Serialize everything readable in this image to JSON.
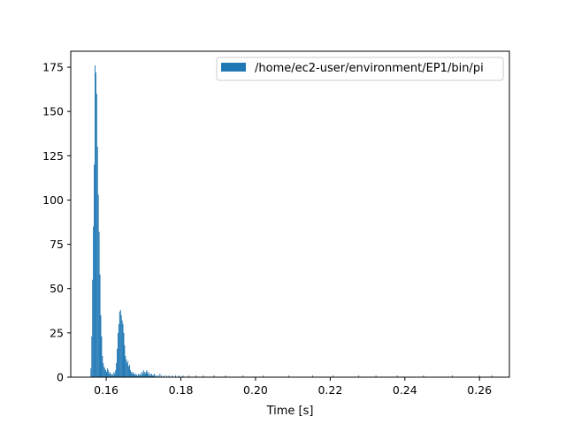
{
  "chart_data": {
    "type": "histogram",
    "xlabel": "Time [s]",
    "ylabel": "",
    "title": "",
    "xlim": [
      0.1505,
      0.268
    ],
    "ylim": [
      0,
      184
    ],
    "xticks": [
      0.16,
      0.18,
      0.2,
      0.22,
      0.24,
      0.26
    ],
    "xtick_labels": [
      "0.16",
      "0.18",
      "0.20",
      "0.22",
      "0.24",
      "0.26"
    ],
    "yticks": [
      0,
      25,
      50,
      75,
      100,
      125,
      150,
      175
    ],
    "ytick_labels": [
      "0",
      "25",
      "50",
      "75",
      "100",
      "125",
      "150",
      "175"
    ],
    "grid": false,
    "legend": {
      "placement": "top-right"
    },
    "colors": {
      "bar": "#1f77b4"
    },
    "series": [
      {
        "name": "/home/ec2-user/environment/EP1/bin/pi",
        "bin_width": 0.00022,
        "bins": [
          [
            0.1558,
            5
          ],
          [
            0.15602,
            23
          ],
          [
            0.15624,
            55
          ],
          [
            0.15646,
            85
          ],
          [
            0.15668,
            120
          ],
          [
            0.1569,
            176
          ],
          [
            0.15712,
            172
          ],
          [
            0.15734,
            160
          ],
          [
            0.15756,
            130
          ],
          [
            0.15778,
            103
          ],
          [
            0.158,
            82
          ],
          [
            0.15822,
            58
          ],
          [
            0.15844,
            35
          ],
          [
            0.15866,
            23
          ],
          [
            0.15888,
            12
          ],
          [
            0.1591,
            8
          ],
          [
            0.15932,
            6
          ],
          [
            0.15954,
            5
          ],
          [
            0.15976,
            4
          ],
          [
            0.15998,
            3
          ],
          [
            0.1602,
            5
          ],
          [
            0.16042,
            4
          ],
          [
            0.16064,
            2
          ],
          [
            0.16086,
            3
          ],
          [
            0.16108,
            2
          ],
          [
            0.1613,
            1
          ],
          [
            0.16152,
            2
          ],
          [
            0.16174,
            1
          ],
          [
            0.16196,
            3
          ],
          [
            0.16218,
            2
          ],
          [
            0.1624,
            4
          ],
          [
            0.16262,
            8
          ],
          [
            0.16284,
            16
          ],
          [
            0.16306,
            25
          ],
          [
            0.16328,
            30
          ],
          [
            0.1635,
            37
          ],
          [
            0.16372,
            38
          ],
          [
            0.16394,
            35
          ],
          [
            0.16416,
            32
          ],
          [
            0.16438,
            30
          ],
          [
            0.1646,
            25
          ],
          [
            0.16482,
            18
          ],
          [
            0.16504,
            12
          ],
          [
            0.16526,
            10
          ],
          [
            0.16548,
            8
          ],
          [
            0.1657,
            9
          ],
          [
            0.16592,
            6
          ],
          [
            0.16614,
            7
          ],
          [
            0.16636,
            4
          ],
          [
            0.16658,
            3
          ],
          [
            0.1668,
            2
          ],
          [
            0.16702,
            3
          ],
          [
            0.16724,
            2
          ],
          [
            0.16746,
            2
          ],
          [
            0.16768,
            1
          ],
          [
            0.1679,
            2
          ],
          [
            0.16812,
            1
          ],
          [
            0.16834,
            1
          ],
          [
            0.16856,
            2
          ],
          [
            0.16878,
            1
          ],
          [
            0.169,
            2
          ],
          [
            0.16922,
            1
          ],
          [
            0.16944,
            3
          ],
          [
            0.16966,
            2
          ],
          [
            0.16988,
            4
          ],
          [
            0.1701,
            3
          ],
          [
            0.17032,
            2
          ],
          [
            0.17054,
            3
          ],
          [
            0.17076,
            4
          ],
          [
            0.17098,
            2
          ],
          [
            0.1712,
            3
          ],
          [
            0.17142,
            1
          ],
          [
            0.17164,
            2
          ],
          [
            0.17186,
            1
          ],
          [
            0.17208,
            2
          ],
          [
            0.1723,
            1
          ],
          [
            0.17252,
            1
          ],
          [
            0.17274,
            2
          ],
          [
            0.17296,
            1
          ],
          [
            0.1734,
            1
          ],
          [
            0.17384,
            1
          ],
          [
            0.17428,
            2
          ],
          [
            0.17472,
            1
          ],
          [
            0.17538,
            1
          ],
          [
            0.17604,
            1
          ],
          [
            0.1767,
            1
          ],
          [
            0.17758,
            1
          ],
          [
            0.17846,
            1
          ],
          [
            0.17934,
            1
          ],
          [
            0.18044,
            1
          ],
          [
            0.18198,
            1
          ],
          [
            0.18396,
            1
          ],
          [
            0.18594,
            1
          ],
          [
            0.1888,
            1
          ],
          [
            0.19188,
            1
          ],
          [
            0.1965,
            1
          ],
          [
            0.202,
            1
          ],
          [
            0.20882,
            1
          ],
          [
            0.2152,
            1
          ],
          [
            0.2207,
            1
          ],
          [
            0.22752,
            1
          ],
          [
            0.23214,
            1
          ],
          [
            0.23786,
            1
          ],
          [
            0.2449,
            1
          ],
          [
            0.2526,
            1
          ],
          [
            0.25986,
            1
          ],
          [
            0.26316,
            1
          ]
        ]
      }
    ]
  }
}
